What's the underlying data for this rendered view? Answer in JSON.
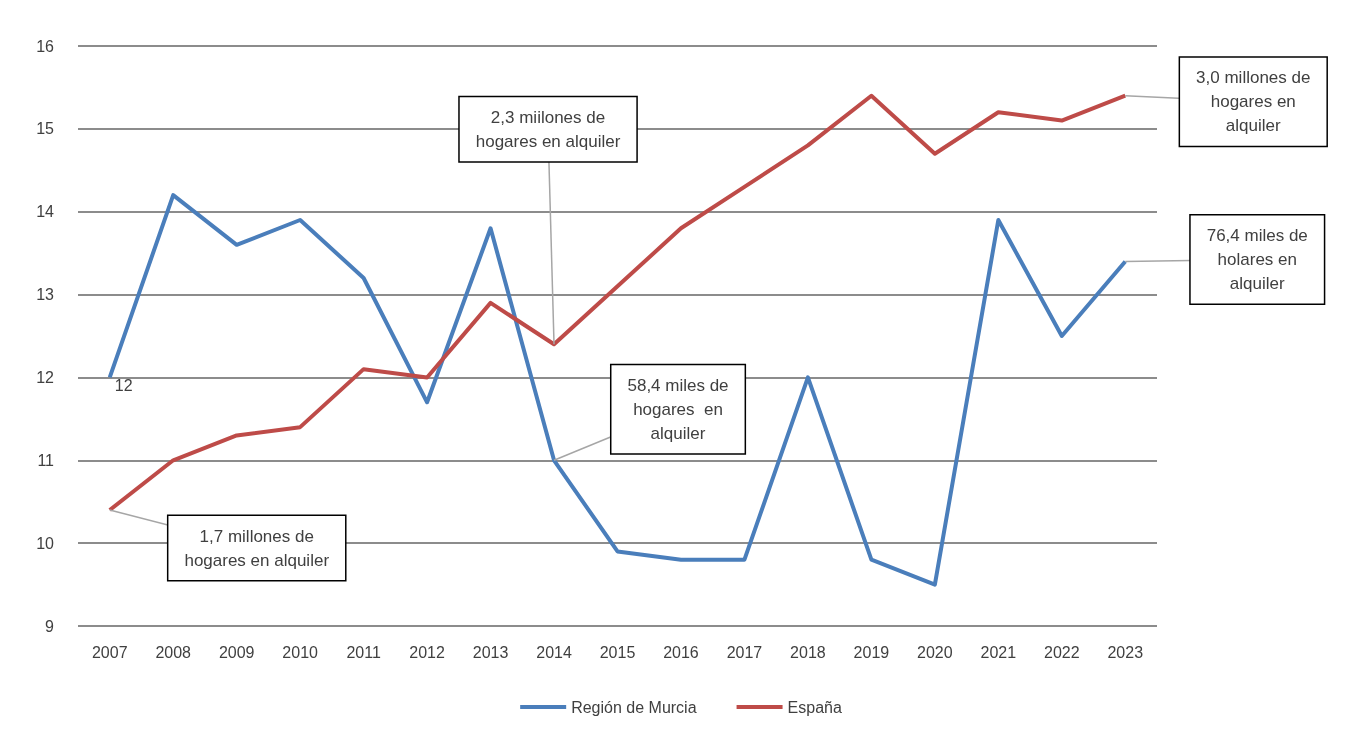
{
  "chart_data": {
    "type": "line",
    "categories": [
      "2007",
      "2008",
      "2009",
      "2010",
      "2011",
      "2012",
      "2013",
      "2014",
      "2015",
      "2016",
      "2017",
      "2018",
      "2019",
      "2020",
      "2021",
      "2022",
      "2023"
    ],
    "series": [
      {
        "name": "Región de Murcia",
        "color": "#4a7ebb",
        "values": [
          12.0,
          14.2,
          13.6,
          13.9,
          13.2,
          11.7,
          13.8,
          11.0,
          9.9,
          9.8,
          9.8,
          12.0,
          9.8,
          9.5,
          13.9,
          12.5,
          13.4
        ],
        "value_labels": [
          "12",
          null,
          null,
          null,
          null,
          null,
          null,
          null,
          null,
          null,
          null,
          null,
          null,
          null,
          null,
          null,
          null
        ]
      },
      {
        "name": "España",
        "color": "#be4b48",
        "values": [
          10.4,
          11.0,
          11.3,
          11.4,
          12.1,
          12.0,
          12.9,
          12.4,
          13.1,
          13.8,
          14.3,
          14.8,
          15.4,
          14.7,
          15.2,
          15.1,
          15.4
        ]
      }
    ],
    "ylim": [
      9,
      16
    ],
    "yticks": [
      9,
      10,
      11,
      12,
      13,
      14,
      15,
      16
    ],
    "grid": "y",
    "legend": "bottom",
    "marker": "none",
    "line_style": "solid",
    "annotations": [
      {
        "text": "1,7 millones de\nhogares en alquiler",
        "x": "2007",
        "y": 10.4
      },
      {
        "text": "2,3 miilones de\nhogares en alquiler",
        "x": "2014",
        "y": 12.4
      },
      {
        "text": "58,4 miles de\nhogares  en\nalquiler",
        "x": "2014",
        "y": 11.0
      },
      {
        "text": "3,0 millones de\nhogares en\nalquiler",
        "x": "2023",
        "y": 15.4
      },
      {
        "text": "76,4 miles de\nholares en\nalquiler",
        "x": "2023",
        "y": 13.4
      }
    ]
  }
}
